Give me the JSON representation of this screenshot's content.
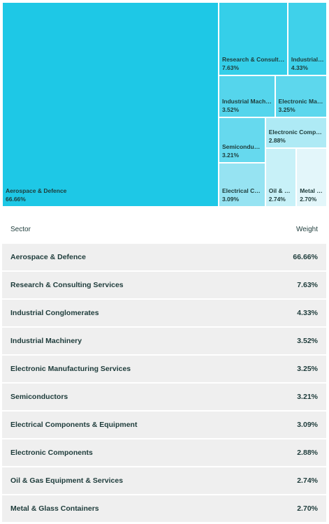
{
  "chart_data": {
    "type": "treemap",
    "categories": [
      "Aerospace & Defence",
      "Research & Consulting Services",
      "Industrial Conglomerates",
      "Industrial Machinery",
      "Electronic Manufacturing Services",
      "Semiconductors",
      "Electrical Components & Equipment",
      "Electronic Components",
      "Oil & Gas Equipment & Services",
      "Metal & Glass Containers"
    ],
    "values": [
      66.66,
      7.63,
      4.33,
      3.52,
      3.25,
      3.21,
      3.09,
      2.88,
      2.74,
      2.7
    ],
    "value_labels": [
      "66.66%",
      "7.63%",
      "4.33%",
      "3.52%",
      "3.25%",
      "3.21%",
      "3.09%",
      "2.88%",
      "2.74%",
      "2.70%"
    ],
    "colors": [
      "#1ec8e6",
      "#35cfe9",
      "#3fd1ea",
      "#55d5ec",
      "#5dd7ed",
      "#66d9ee",
      "#96e3f2",
      "#aeeaf5",
      "#c8f1f8",
      "#e3f6fa"
    ]
  },
  "table": {
    "headers": [
      "Sector",
      "Weight"
    ]
  }
}
